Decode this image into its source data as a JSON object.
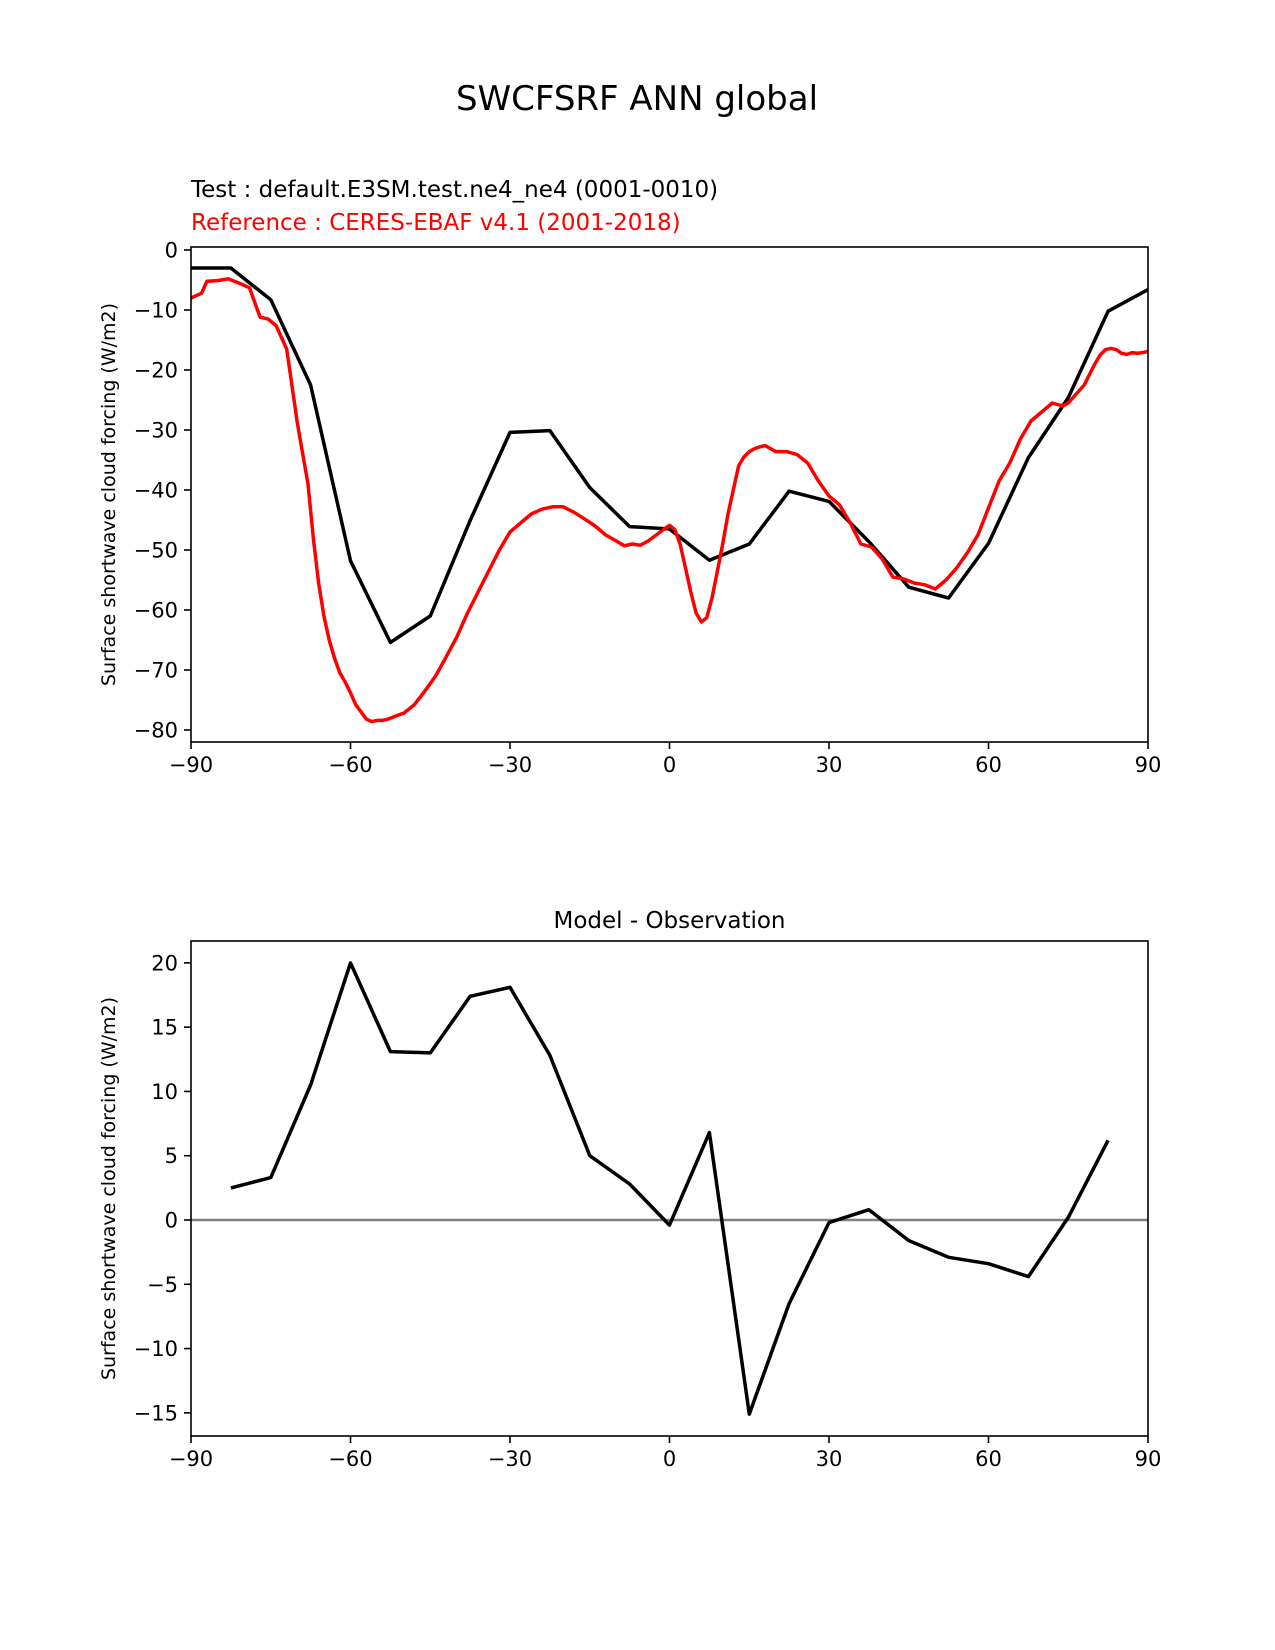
{
  "figure": {
    "title": "SWCFSRF ANN global",
    "test_label": "Test : default.E3SM.test.ne4_ne4 (0001-0010)",
    "reference_label": "Reference : CERES-EBAF v4.1 (2001-2018)"
  },
  "colors": {
    "test": "#000000",
    "reference": "#ff0000",
    "zero_line": "#808080",
    "axes": "#000000"
  },
  "chart_data": [
    {
      "type": "line",
      "title": "",
      "xlabel": "",
      "ylabel": "Surface shortwave cloud forcing (W/m2)",
      "xlim": [
        -90,
        90
      ],
      "ylim": [
        -82,
        0.5
      ],
      "xticks": [
        -90,
        -60,
        -30,
        0,
        30,
        60,
        90
      ],
      "xtick_labels": [
        "−90",
        "−60",
        "−30",
        "0",
        "30",
        "60",
        "90"
      ],
      "yticks": [
        0,
        -10,
        -20,
        -30,
        -40,
        -50,
        -60,
        -70,
        -80
      ],
      "ytick_labels": [
        "0",
        "−10",
        "−20",
        "−30",
        "−40",
        "−50",
        "−60",
        "−70",
        "−80"
      ],
      "grid": false,
      "series": [
        {
          "key": "test",
          "x": [
            -90,
            -82.5,
            -75,
            -67.5,
            -60,
            -52.5,
            -45,
            -37.5,
            -30,
            -22.5,
            -15,
            -7.5,
            0,
            7.5,
            15,
            22.5,
            30,
            37.5,
            45,
            52.5,
            60,
            67.5,
            75,
            82.5,
            90
          ],
          "y": [
            -3,
            -3,
            -8.3,
            -22.5,
            -51.8,
            -65.4,
            -61,
            -45.1,
            -30.4,
            -30.1,
            -39.6,
            -46.1,
            -46.5,
            -51.7,
            -49,
            -40.2,
            -41.9,
            -48.6,
            -56.2,
            -58,
            -48.9,
            -34.6,
            -24.6,
            -10.2,
            -6.6
          ]
        },
        {
          "key": "reference",
          "x": [
            -90,
            -88,
            -87,
            -85,
            -83,
            -81,
            -79,
            -77,
            -75.5,
            -74,
            -72,
            -70,
            -68,
            -67,
            -66,
            -65,
            -64,
            -63,
            -62,
            -61,
            -60,
            -59,
            -58,
            -57,
            -56,
            -55,
            -54,
            -53,
            -51,
            -50,
            -48,
            -46,
            -44,
            -42,
            -40,
            -38,
            -36,
            -34,
            -32,
            -30,
            -28,
            -26,
            -24,
            -22,
            -20,
            -18,
            -16,
            -14,
            -12,
            -10,
            -8.5,
            -7,
            -5.5,
            -4,
            -2.5,
            -1,
            0,
            1,
            2,
            3,
            4,
            5,
            6,
            7,
            8,
            9,
            10,
            11,
            12,
            13,
            14,
            15,
            16,
            17,
            18,
            20,
            22,
            24,
            26,
            28,
            30,
            32,
            34,
            36,
            38,
            40,
            42,
            44,
            46,
            48,
            50,
            52,
            54,
            56,
            58,
            60,
            62,
            64,
            65,
            66,
            68,
            70,
            72,
            74,
            75,
            76,
            78,
            80,
            81,
            82,
            83,
            84,
            85,
            86,
            87,
            88,
            89,
            90
          ],
          "y": [
            -8,
            -7.2,
            -5.2,
            -5.1,
            -4.8,
            -5.5,
            -6.3,
            -11.2,
            -11.5,
            -12.6,
            -16.5,
            -28.8,
            -39,
            -48,
            -55.5,
            -61,
            -65,
            -68,
            -70.5,
            -72,
            -73.8,
            -75.8,
            -77,
            -78.2,
            -78.6,
            -78.4,
            -78.4,
            -78.2,
            -77.5,
            -77.2,
            -75.8,
            -73.5,
            -71,
            -67.8,
            -64.5,
            -60.5,
            -57,
            -53.5,
            -50,
            -47,
            -45.5,
            -44,
            -43.2,
            -42.8,
            -42.8,
            -43.7,
            -44.8,
            -46,
            -47.5,
            -48.5,
            -49.3,
            -49,
            -49.2,
            -48.5,
            -47.5,
            -46.5,
            -45.9,
            -46.6,
            -49,
            -53,
            -57,
            -60.5,
            -62,
            -61.3,
            -58,
            -53.5,
            -49,
            -44,
            -40,
            -36,
            -34.5,
            -33.6,
            -33.1,
            -32.8,
            -32.6,
            -33.6,
            -33.6,
            -34.1,
            -35.5,
            -38.5,
            -41,
            -42.5,
            -45.5,
            -49,
            -49.5,
            -51.5,
            -54.5,
            -54.8,
            -55.5,
            -55.8,
            -56.5,
            -55,
            -53,
            -50.5,
            -47.5,
            -43,
            -38.5,
            -35.5,
            -33.5,
            -31.5,
            -28.5,
            -27,
            -25.5,
            -26,
            -25.5,
            -24.5,
            -22.5,
            -19,
            -17.5,
            -16.6,
            -16.4,
            -16.6,
            -17.2,
            -17.4,
            -17.1,
            -17.2,
            -17.1,
            -16.9
          ]
        }
      ]
    },
    {
      "type": "line",
      "title": "Model - Observation",
      "xlabel": "",
      "ylabel": "Surface shortwave cloud forcing (W/m2)",
      "xlim": [
        -90,
        90
      ],
      "ylim": [
        -16.8,
        21.7
      ],
      "xticks": [
        -90,
        -60,
        -30,
        0,
        30,
        60,
        90
      ],
      "xtick_labels": [
        "−90",
        "−60",
        "−30",
        "0",
        "30",
        "60",
        "90"
      ],
      "yticks": [
        20,
        15,
        10,
        5,
        0,
        -5,
        -10,
        -15
      ],
      "ytick_labels": [
        "20",
        "15",
        "10",
        "5",
        "0",
        "−5",
        "−10",
        "−15"
      ],
      "grid": false,
      "zero_line": true,
      "series": [
        {
          "key": "test",
          "x": [
            -82.5,
            -75,
            -67.5,
            -60,
            -52.5,
            -45,
            -37.5,
            -30,
            -22.5,
            -15,
            -7.5,
            0,
            7.5,
            15,
            22.5,
            30,
            37.5,
            45,
            52.5,
            60,
            67.5,
            75,
            82.5
          ],
          "y": [
            2.5,
            3.3,
            10.5,
            20,
            13.1,
            13,
            17.4,
            18.1,
            12.8,
            5,
            2.8,
            -0.4,
            6.8,
            -15.1,
            -6.5,
            -0.2,
            0.8,
            -1.6,
            -2.9,
            -3.4,
            -4.4,
            0.2,
            6.2
          ]
        }
      ]
    }
  ]
}
